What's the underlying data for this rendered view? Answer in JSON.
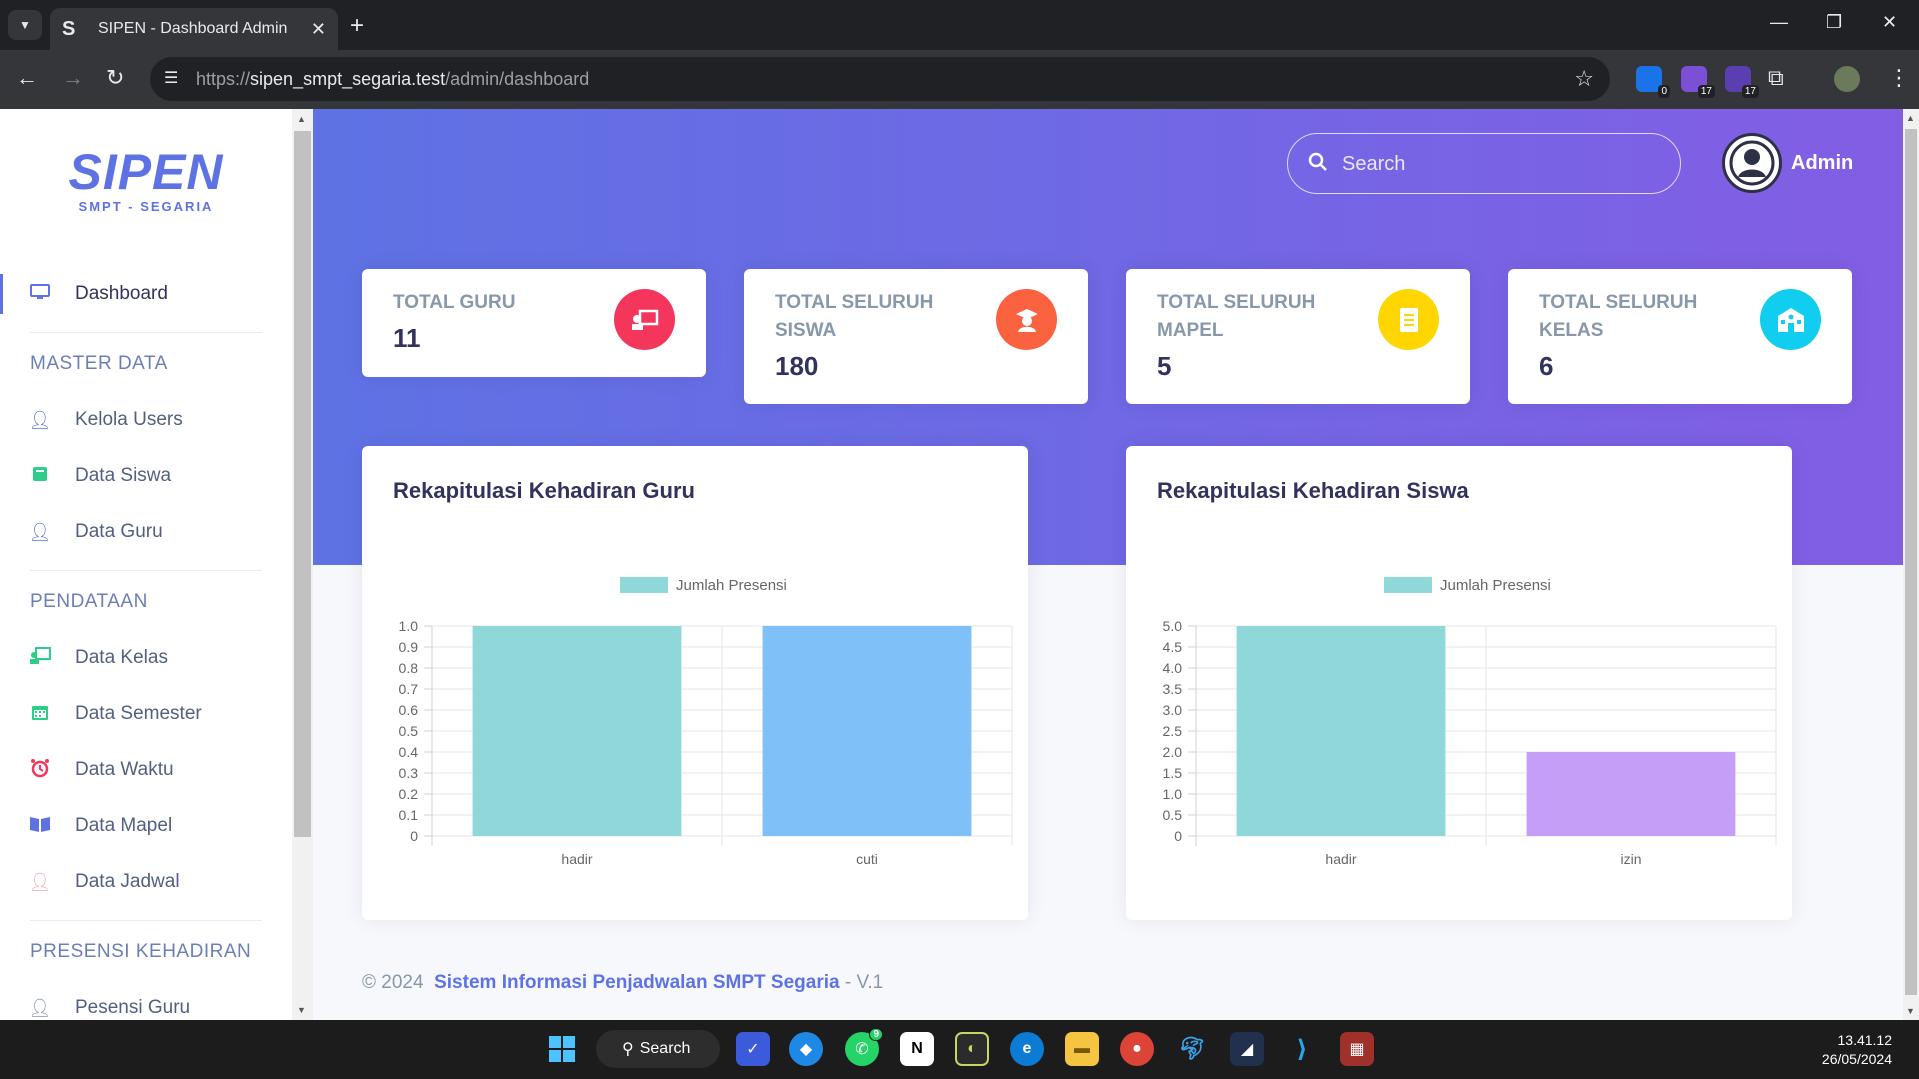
{
  "browser": {
    "tab_title": "SIPEN - Dashboard Admin",
    "tab_favicon": "S",
    "url_prefix": "https://",
    "url_host": "sipen_smpt_segaria.test",
    "url_path": "/admin/dashboard",
    "extensions": [
      {
        "name": "extension-icon-1",
        "badge": "0",
        "color": "#1a73e8"
      },
      {
        "name": "extension-icon-2",
        "badge": "17",
        "color": "#7b4fd6"
      },
      {
        "name": "extension-icon-3",
        "badge": "17",
        "color": "#5a3fb0"
      }
    ]
  },
  "sidebar": {
    "brand": "SIPEN",
    "brand_sub": "SMPT - SEGARIA",
    "dashboard": "Dashboard",
    "master_heading": "MASTER DATA",
    "master_items": [
      "Kelola Users",
      "Data Siswa",
      "Data Guru"
    ],
    "pendataan_heading": "PENDATAAN",
    "pendataan_items": [
      "Data Kelas",
      "Data Semester",
      "Data Waktu",
      "Data Mapel",
      "Data Jadwal"
    ],
    "presensi_heading": "PRESENSI KEHADIRAN",
    "presensi_items": [
      "Pesensi Guru"
    ]
  },
  "header": {
    "search_placeholder": "Search",
    "user_name": "Admin"
  },
  "stats": [
    {
      "title": "TOTAL GURU",
      "value": "11",
      "color": "#f5365c",
      "icon": "chalkboard-teacher-icon"
    },
    {
      "title": "TOTAL SELURUH SISWA",
      "value": "180",
      "color": "#fb6340",
      "icon": "graduate-icon"
    },
    {
      "title": "TOTAL SELURUH MAPEL",
      "value": "5",
      "color": "#ffd600",
      "icon": "book-icon"
    },
    {
      "title": "TOTAL SELURUH KELAS",
      "value": "6",
      "color": "#11cdef",
      "icon": "school-icon"
    }
  ],
  "cards": {
    "guru_title": "Rekapitulasi Kehadiran Guru",
    "siswa_title": "Rekapitulasi Kehadiran Siswa"
  },
  "chart_data": [
    {
      "type": "bar",
      "title": "Rekapitulasi Kehadiran Guru",
      "categories": [
        "hadir",
        "cuti"
      ],
      "series": [
        {
          "name": "Jumlah Presensi",
          "values": [
            1,
            1
          ]
        }
      ],
      "bar_colors": [
        "#8fd7d9",
        "#7ec0f7"
      ],
      "legend_color": "#8fd7d9",
      "legend": "top-center",
      "ylim": [
        0,
        1.0
      ],
      "yticks": [
        "0",
        "0.1",
        "0.2",
        "0.3",
        "0.4",
        "0.5",
        "0.6",
        "0.7",
        "0.8",
        "0.9",
        "1.0"
      ],
      "grid": true
    },
    {
      "type": "bar",
      "title": "Rekapitulasi Kehadiran Siswa",
      "categories": [
        "hadir",
        "izin"
      ],
      "series": [
        {
          "name": "Jumlah Presensi",
          "values": [
            5,
            2
          ]
        }
      ],
      "bar_colors": [
        "#8fd7d9",
        "#c59ff7"
      ],
      "legend_color": "#8fd7d9",
      "legend": "top-center",
      "ylim": [
        0,
        5.0
      ],
      "yticks": [
        "0",
        "0.5",
        "1.0",
        "1.5",
        "2.0",
        "2.5",
        "3.0",
        "3.5",
        "4.0",
        "4.5",
        "5.0"
      ],
      "grid": true
    }
  ],
  "footer": {
    "copyright": "© 2024",
    "link": "Sistem Informasi Penjadwalan SMPT Segaria",
    "version": "- V.1"
  },
  "taskbar": {
    "search_label": "Search",
    "time": "13.41.12",
    "date": "26/05/2024",
    "whatsapp_badge": "9"
  }
}
